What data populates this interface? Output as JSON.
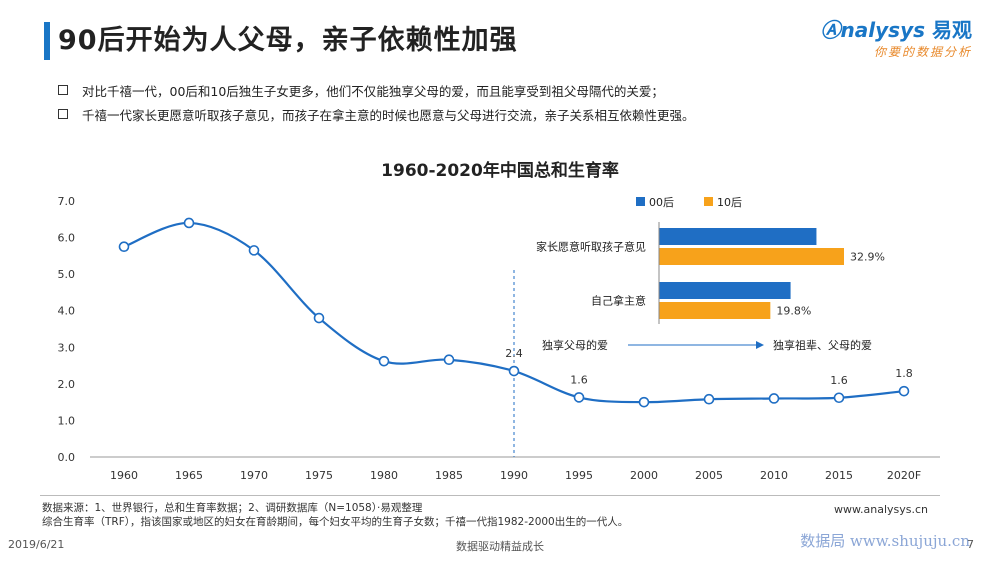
{
  "header": {
    "title": "90后开始为人父母，亲子依赖性加强"
  },
  "logo": {
    "brand": "nalysys",
    "brand_cn": "易观",
    "tagline": "你要的数据分析"
  },
  "bullets": [
    "对比千禧一代，00后和10后独生子女更多，他们不仅能独享父母的爱，而且能享受到祖父母隔代的关爱；",
    "千禧一代家长更愿意听取孩子意见，而孩子在拿主意的时候也愿意与父母进行交流，亲子关系相互依赖性更强。"
  ],
  "chart_data": [
    {
      "type": "line",
      "title": "1960-2020年中国总和生育率",
      "categories": [
        "1960",
        "1965",
        "1970",
        "1975",
        "1980",
        "1985",
        "1990",
        "1995",
        "2000",
        "2005",
        "2010",
        "2015",
        "2020F"
      ],
      "values": [
        5.75,
        6.4,
        5.65,
        3.8,
        2.62,
        2.66,
        2.35,
        1.63,
        1.5,
        1.58,
        1.6,
        1.62,
        1.8
      ],
      "data_labels": [
        {
          "index": 6,
          "text": "2.4"
        },
        {
          "index": 7,
          "text": "1.6"
        },
        {
          "index": 11,
          "text": "1.6"
        },
        {
          "index": 12,
          "text": "1.8"
        }
      ],
      "ylim": [
        0,
        7
      ],
      "yticks": [
        "0.0",
        "1.0",
        "2.0",
        "3.0",
        "4.0",
        "5.0",
        "6.0",
        "7.0"
      ],
      "marker_category": "1990",
      "color": "#1f6ec4"
    },
    {
      "type": "bar",
      "orientation": "horizontal",
      "categories": [
        "家长愿意听取孩子意见",
        "自己拿主意"
      ],
      "series": [
        {
          "name": "00后",
          "color": "#1f6ec4",
          "values": [
            28.0,
            23.4
          ],
          "labels": [
            "",
            ""
          ]
        },
        {
          "name": "10后",
          "color": "#f7a21b",
          "values": [
            32.9,
            19.8
          ],
          "labels": [
            "32.9%",
            "19.8%"
          ]
        }
      ],
      "xlim": [
        0,
        35
      ],
      "legend": "top"
    }
  ],
  "annotation": {
    "left": "独享父母的爱",
    "right": "独享祖辈、父母的爱"
  },
  "footer": {
    "source_line1": "数据来源：1、世界银行，总和生育率数据；2、调研数据库（N=1058）·易观整理",
    "source_line2": "综合生育率（TRF），指该国家或地区的妇女在育龄期间，每个妇女平均的生育子女数；千禧一代指1982-2000出生的一代人。",
    "site": "www.analysys.cn",
    "date": "2019/6/21",
    "slogan": "数据驱动精益成长",
    "watermark_site": "数据局 www.shujuju.cn",
    "page": "7"
  }
}
